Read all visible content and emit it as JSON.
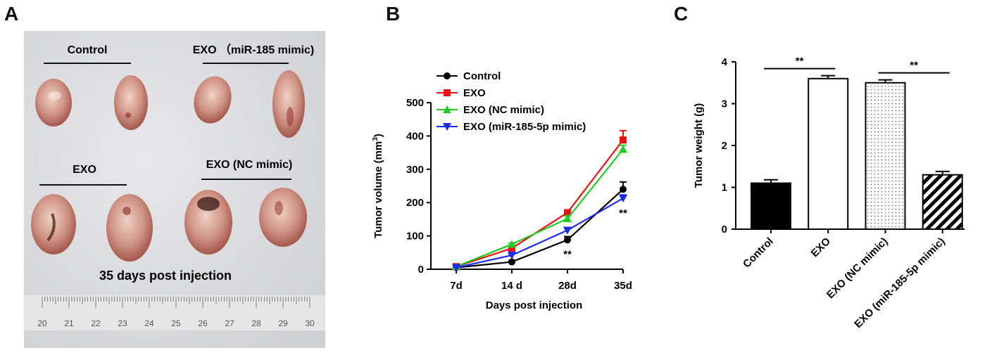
{
  "panels": {
    "a": "A",
    "b": "B",
    "c": "C"
  },
  "photo": {
    "labels": {
      "control": "Control",
      "exo_mir185": "EXO  （miR-185 mimic)",
      "exo": "EXO",
      "exo_nc": "EXO   (NC mimic)",
      "caption": "35 days post injection"
    },
    "ruler_ticks": [
      "20",
      "21",
      "22",
      "23",
      "24",
      "25",
      "26",
      "27",
      "28",
      "29",
      "30"
    ],
    "colors": {
      "background": "#dcdde0",
      "tumor": "#c98a7e",
      "blood": "#8a2a22",
      "ruler": "#e4e4e4"
    }
  },
  "chart_data": [
    {
      "type": "line",
      "xlabel": "Days post injection",
      "ylabel": "Tumor volume (mm",
      "ylabel_sup": "3",
      "ylabel_close": ")",
      "categories": [
        "7d",
        "14 d",
        "28d",
        "35d"
      ],
      "ylim": [
        0,
        500
      ],
      "yticks": [
        "0",
        "100",
        "200",
        "300",
        "400",
        "500"
      ],
      "legend_position": "top-left",
      "grid": false,
      "series": [
        {
          "name": "Control",
          "color": "#000000",
          "marker": "circle",
          "values": [
            5,
            22,
            88,
            240
          ],
          "errors": [
            2,
            4,
            10,
            22
          ]
        },
        {
          "name": "EXO",
          "color": "#ee1111",
          "marker": "square",
          "values": [
            8,
            63,
            170,
            388
          ],
          "errors": [
            2,
            5,
            8,
            28
          ]
        },
        {
          "name": "EXO (NC mimic)",
          "color": "#22cc22",
          "marker": "triangle-up",
          "values": [
            8,
            75,
            152,
            360
          ],
          "errors": [
            2,
            4,
            8,
            12
          ]
        },
        {
          "name": "EXO (miR-185-5p mimic)",
          "color": "#1a2cf0",
          "marker": "triangle-down",
          "values": [
            5,
            42,
            117,
            213
          ],
          "errors": [
            2,
            4,
            6,
            10
          ]
        }
      ],
      "annotations": [
        {
          "text": "**",
          "x": "28d",
          "y": 52
        },
        {
          "text": "**",
          "x": "35d",
          "y": 175
        }
      ]
    },
    {
      "type": "bar",
      "ylabel": "Tumor weight (g)",
      "categories": [
        "Control",
        "EXO",
        "EXO (NC mimic)",
        "EXO (miR-185-5p mimic)"
      ],
      "values": [
        1.1,
        3.6,
        3.5,
        1.3
      ],
      "errors": [
        0.08,
        0.07,
        0.07,
        0.08
      ],
      "ylim": [
        0,
        4
      ],
      "yticks": [
        "0",
        "1",
        "2",
        "3",
        "4"
      ],
      "fills": [
        "solid-black",
        "white",
        "dotted",
        "diagonal-stripes"
      ],
      "significance": [
        {
          "text": "**",
          "from": "Control",
          "to": "EXO"
        },
        {
          "text": "**",
          "from": "EXO (NC mimic)",
          "to": "EXO (miR-185-5p mimic)"
        }
      ]
    }
  ]
}
